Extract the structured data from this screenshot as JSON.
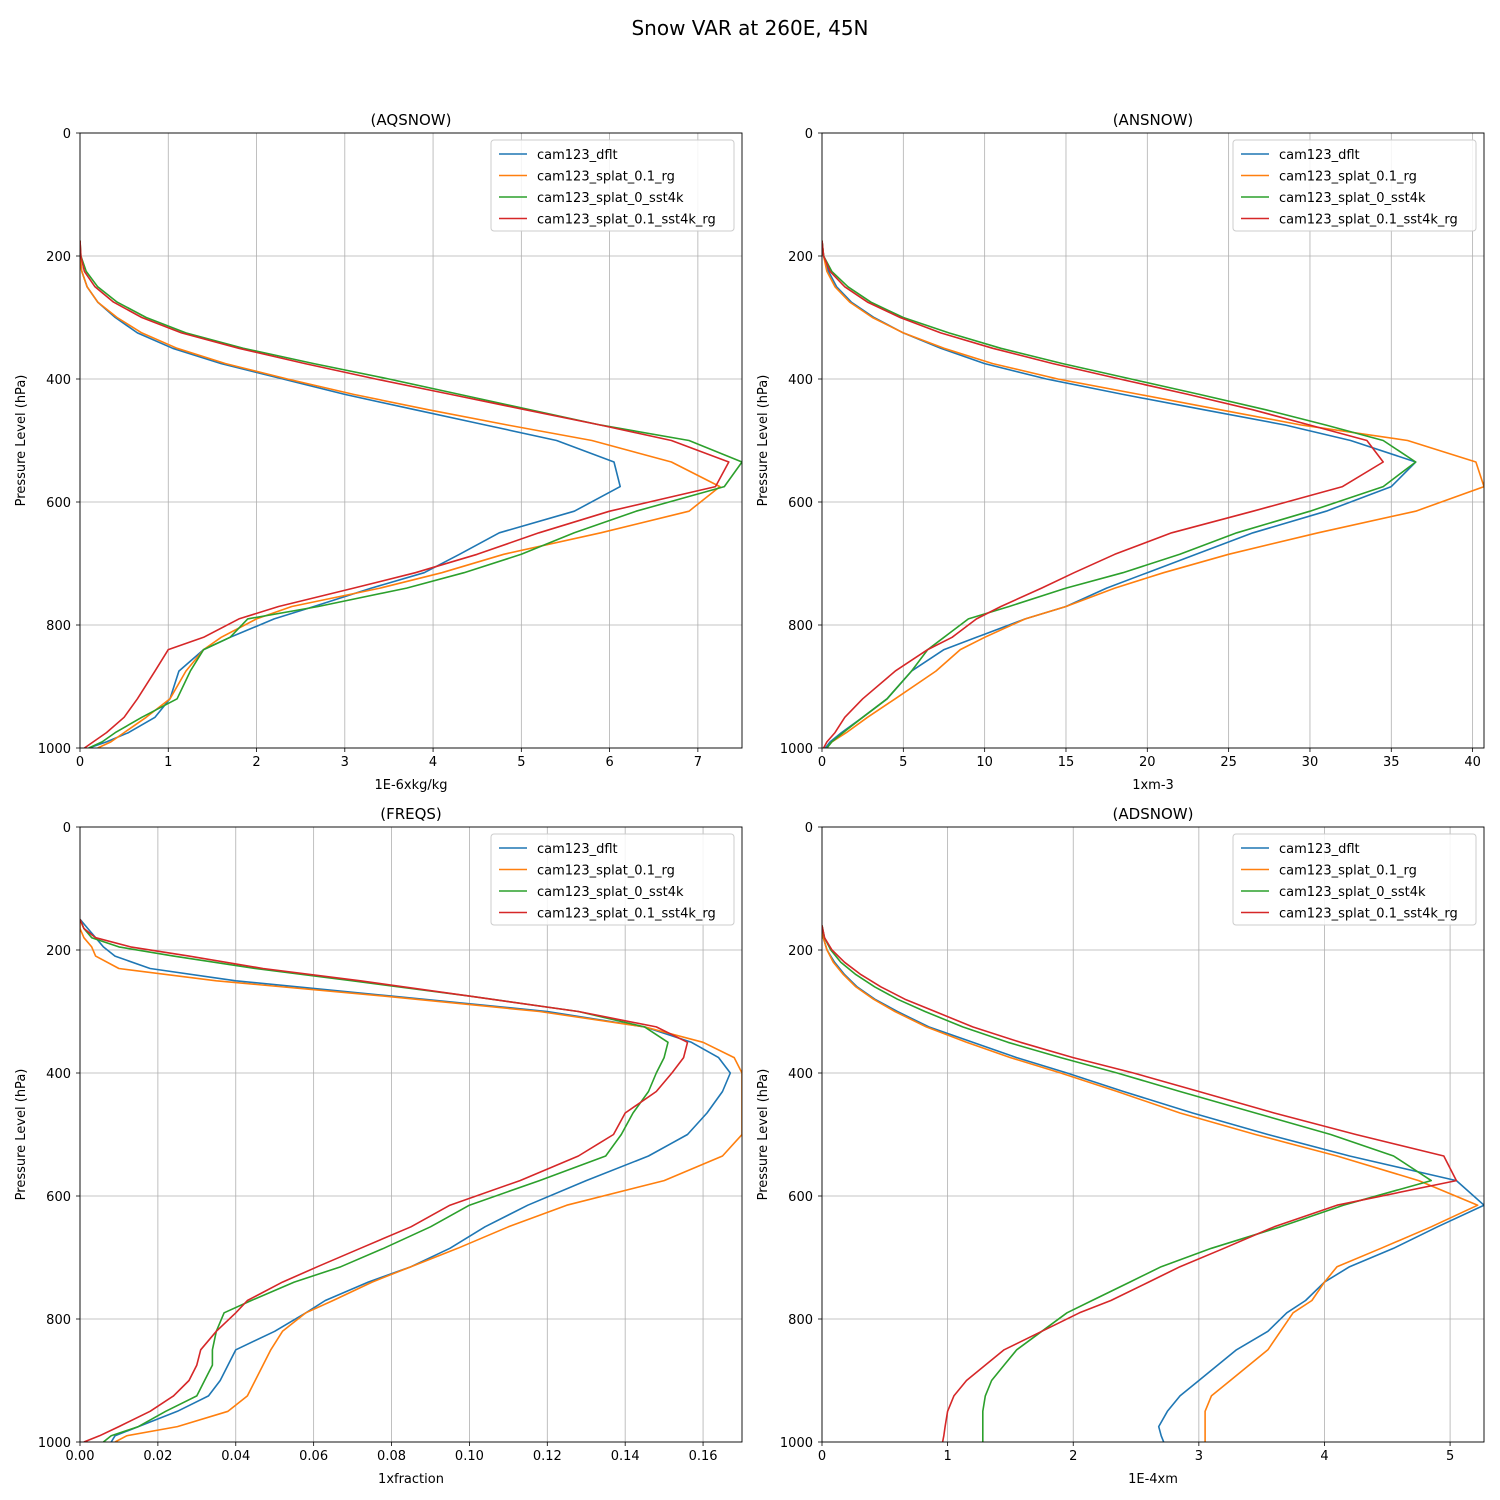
{
  "figure": {
    "title": "Snow VAR at 260E, 45N"
  },
  "colors": {
    "cam123_dflt": "#1f77b4",
    "cam123_splat_0.1_rg": "#ff7f0e",
    "cam123_splat_0_sst4k": "#2ca02c",
    "cam123_splat_0.1_sst4k_rg": "#d62728"
  },
  "chart_data": [
    {
      "type": "line",
      "title": "(AQSNOW)",
      "xlabel": "1E-6xkg/kg",
      "ylabel": "Pressure Level (hPa)",
      "xlim": [
        0,
        7.5
      ],
      "ylim": [
        1000,
        0
      ],
      "xticks": [
        0,
        1,
        2,
        3,
        4,
        5,
        6,
        7
      ],
      "yticks": [
        0,
        200,
        400,
        600,
        800,
        1000
      ],
      "grid": true,
      "legend_loc": "upper right",
      "y": [
        175,
        200,
        225,
        250,
        275,
        300,
        325,
        350,
        375,
        400,
        425,
        450,
        475,
        500,
        535,
        575,
        615,
        650,
        685,
        715,
        740,
        770,
        790,
        820,
        840,
        875,
        920,
        950,
        975,
        990,
        1000
      ],
      "series": [
        {
          "name": "cam123_dflt",
          "values": [
            0,
            0,
            0.02,
            0.08,
            0.2,
            0.4,
            0.65,
            1.05,
            1.6,
            2.3,
            3.0,
            3.8,
            4.6,
            5.4,
            6.05,
            6.12,
            5.6,
            4.75,
            4.3,
            3.9,
            3.3,
            2.65,
            2.2,
            1.7,
            1.4,
            1.12,
            1.02,
            0.85,
            0.55,
            0.3,
            0.1
          ]
        },
        {
          "name": "cam123_splat_0.1_rg",
          "values": [
            0,
            0,
            0.02,
            0.08,
            0.2,
            0.42,
            0.7,
            1.1,
            1.65,
            2.35,
            3.1,
            3.95,
            4.85,
            5.8,
            6.7,
            7.25,
            6.9,
            5.9,
            4.8,
            4.1,
            3.4,
            2.4,
            2.0,
            1.6,
            1.4,
            1.2,
            1.02,
            0.75,
            0.5,
            0.35,
            0.2
          ]
        },
        {
          "name": "cam123_splat_0_sst4k",
          "values": [
            0,
            0.01,
            0.07,
            0.2,
            0.42,
            0.75,
            1.2,
            1.85,
            2.65,
            3.5,
            4.3,
            5.1,
            5.9,
            6.9,
            7.5,
            7.3,
            6.3,
            5.6,
            5.0,
            4.35,
            3.7,
            2.7,
            1.9,
            1.7,
            1.4,
            1.25,
            1.1,
            0.7,
            0.4,
            0.25,
            0.1
          ]
        },
        {
          "name": "cam123_splat_0.1_sst4k_rg",
          "values": [
            0,
            0.01,
            0.05,
            0.17,
            0.38,
            0.7,
            1.15,
            1.8,
            2.55,
            3.35,
            4.2,
            5.05,
            5.9,
            6.7,
            7.35,
            7.2,
            6.0,
            5.2,
            4.5,
            3.8,
            3.1,
            2.25,
            1.8,
            1.4,
            1.0,
            0.85,
            0.65,
            0.5,
            0.3,
            0.15,
            0.05
          ]
        }
      ]
    },
    {
      "type": "line",
      "title": "(ANSNOW)",
      "xlabel": "1xm-3",
      "ylabel": "Pressure Level (hPa)",
      "xlim": [
        0,
        40.7
      ],
      "ylim": [
        1000,
        0
      ],
      "xticks": [
        0,
        5,
        10,
        15,
        20,
        25,
        30,
        35,
        40
      ],
      "yticks": [
        0,
        200,
        400,
        600,
        800,
        1000
      ],
      "grid": true,
      "legend_loc": "upper right",
      "y": [
        175,
        200,
        225,
        250,
        275,
        300,
        325,
        350,
        375,
        400,
        425,
        450,
        475,
        500,
        535,
        575,
        615,
        650,
        685,
        715,
        740,
        770,
        790,
        820,
        840,
        875,
        920,
        950,
        975,
        990,
        1000
      ],
      "series": [
        {
          "name": "cam123_dflt",
          "values": [
            0,
            0.1,
            0.4,
            0.9,
            1.8,
            3.2,
            5.0,
            7.3,
            10.0,
            13.8,
            18.5,
            23.5,
            28.5,
            32.5,
            36.5,
            35.0,
            31.0,
            26.5,
            23.0,
            20.0,
            17.5,
            15.0,
            12.5,
            9.5,
            7.5,
            5.5,
            4.0,
            2.5,
            1.2,
            0.5,
            0.2
          ]
        },
        {
          "name": "cam123_splat_0.1_rg",
          "values": [
            0,
            0.1,
            0.3,
            0.8,
            1.7,
            3.1,
            5.0,
            7.5,
            10.5,
            14.5,
            19.5,
            24.5,
            29.5,
            36.0,
            40.2,
            40.7,
            36.5,
            30.5,
            25.0,
            21.0,
            18.0,
            15.0,
            12.5,
            10.0,
            8.5,
            7.0,
            4.5,
            2.8,
            1.5,
            0.6,
            0.3
          ]
        },
        {
          "name": "cam123_splat_0_sst4k",
          "values": [
            0,
            0.1,
            0.6,
            1.6,
            3.0,
            5.0,
            7.8,
            11.0,
            14.8,
            19.0,
            23.2,
            27.3,
            31.0,
            34.5,
            36.5,
            34.5,
            30.0,
            25.5,
            22.0,
            18.5,
            15.0,
            11.5,
            9.0,
            7.5,
            6.5,
            5.5,
            4.0,
            2.5,
            1.3,
            0.6,
            0.3
          ]
        },
        {
          "name": "cam123_splat_0.1_sst4k_rg",
          "values": [
            0,
            0.1,
            0.5,
            1.4,
            2.8,
            4.8,
            7.3,
            10.5,
            14.2,
            18.3,
            22.5,
            26.5,
            30.0,
            33.5,
            34.5,
            32.0,
            26.5,
            21.5,
            18.0,
            15.5,
            13.5,
            11.0,
            9.5,
            8.0,
            6.5,
            4.5,
            2.5,
            1.4,
            0.8,
            0.3,
            0.1
          ]
        }
      ]
    },
    {
      "type": "line",
      "title": "(FREQS)",
      "xlabel": "1xfraction",
      "ylabel": "Pressure Level (hPa)",
      "xlim": [
        0,
        0.17
      ],
      "ylim": [
        1000,
        0
      ],
      "xticks": [
        0,
        0.02,
        0.04,
        0.06,
        0.08,
        0.1,
        0.12,
        0.14,
        0.16
      ],
      "xtick_labels": [
        "0.00",
        "0.02",
        "0.04",
        "0.06",
        "0.08",
        "0.10",
        "0.12",
        "0.14",
        "0.16"
      ],
      "yticks": [
        0,
        200,
        400,
        600,
        800,
        1000
      ],
      "grid": true,
      "legend_loc": "upper right",
      "y": [
        150,
        165,
        180,
        195,
        210,
        230,
        250,
        275,
        300,
        325,
        350,
        375,
        400,
        430,
        465,
        500,
        535,
        575,
        615,
        650,
        685,
        715,
        740,
        770,
        790,
        820,
        850,
        875,
        900,
        925,
        950,
        975,
        990,
        1000
      ],
      "series": [
        {
          "name": "cam123_dflt",
          "values": [
            0,
            0.002,
            0.004,
            0.006,
            0.009,
            0.018,
            0.04,
            0.08,
            0.12,
            0.145,
            0.157,
            0.164,
            0.167,
            0.165,
            0.161,
            0.156,
            0.146,
            0.13,
            0.115,
            0.104,
            0.095,
            0.085,
            0.074,
            0.063,
            0.058,
            0.05,
            0.04,
            0.038,
            0.036,
            0.033,
            0.025,
            0.015,
            0.009,
            0.008
          ]
        },
        {
          "name": "cam123_splat_0.1_rg",
          "values": [
            0,
            0,
            0.001,
            0.003,
            0.004,
            0.01,
            0.035,
            0.078,
            0.118,
            0.145,
            0.16,
            0.168,
            0.17,
            0.17,
            0.17,
            0.17,
            0.165,
            0.15,
            0.125,
            0.11,
            0.097,
            0.085,
            0.075,
            0.065,
            0.058,
            0.052,
            0.049,
            0.047,
            0.045,
            0.043,
            0.038,
            0.025,
            0.012,
            0.009
          ]
        },
        {
          "name": "cam123_splat_0_sst4k",
          "values": [
            0,
            0.001,
            0.003,
            0.01,
            0.024,
            0.045,
            0.07,
            0.1,
            0.128,
            0.145,
            0.151,
            0.15,
            0.148,
            0.146,
            0.142,
            0.139,
            0.135,
            0.118,
            0.1,
            0.09,
            0.078,
            0.067,
            0.055,
            0.044,
            0.037,
            0.035,
            0.034,
            0.034,
            0.032,
            0.03,
            0.022,
            0.015,
            0.008,
            0.006
          ]
        },
        {
          "name": "cam123_splat_0.1_sst4k_rg",
          "values": [
            0,
            0.001,
            0.004,
            0.013,
            0.028,
            0.047,
            0.072,
            0.1,
            0.128,
            0.148,
            0.156,
            0.155,
            0.152,
            0.148,
            0.14,
            0.137,
            0.128,
            0.113,
            0.095,
            0.085,
            0.072,
            0.061,
            0.052,
            0.043,
            0.04,
            0.035,
            0.031,
            0.03,
            0.028,
            0.024,
            0.018,
            0.01,
            0.005,
            0.001
          ]
        }
      ]
    },
    {
      "type": "line",
      "title": "(ADSNOW)",
      "xlabel": "1E-4xm",
      "ylabel": "Pressure Level (hPa)",
      "xlim": [
        0,
        5.27
      ],
      "ylim": [
        1000,
        0
      ],
      "xticks": [
        0,
        1,
        2,
        3,
        4,
        5
      ],
      "yticks": [
        0,
        200,
        400,
        600,
        800,
        1000
      ],
      "grid": true,
      "legend_loc": "upper right",
      "y": [
        160,
        180,
        200,
        220,
        240,
        260,
        280,
        300,
        325,
        350,
        375,
        400,
        430,
        465,
        500,
        535,
        575,
        615,
        650,
        685,
        715,
        740,
        770,
        790,
        820,
        850,
        875,
        900,
        925,
        950,
        975,
        990,
        1000
      ],
      "series": [
        {
          "name": "cam123_dflt",
          "values": [
            0,
            0.01,
            0.04,
            0.1,
            0.18,
            0.28,
            0.42,
            0.6,
            0.85,
            1.2,
            1.55,
            1.95,
            2.4,
            2.95,
            3.55,
            4.2,
            5.05,
            5.27,
            4.9,
            4.55,
            4.2,
            4.0,
            3.85,
            3.7,
            3.55,
            3.3,
            3.15,
            3.0,
            2.85,
            2.75,
            2.68,
            2.7,
            2.72
          ]
        },
        {
          "name": "cam123_splat_0.1_rg",
          "values": [
            0,
            0.01,
            0.04,
            0.09,
            0.17,
            0.27,
            0.41,
            0.58,
            0.83,
            1.15,
            1.5,
            1.9,
            2.35,
            2.85,
            3.45,
            4.1,
            4.75,
            5.22,
            4.85,
            4.45,
            4.1,
            4.0,
            3.9,
            3.75,
            3.65,
            3.55,
            3.4,
            3.25,
            3.1,
            3.05,
            3.05,
            3.05,
            3.05
          ]
        },
        {
          "name": "cam123_splat_0_sst4k",
          "values": [
            0,
            0.02,
            0.07,
            0.15,
            0.27,
            0.42,
            0.6,
            0.82,
            1.12,
            1.48,
            1.9,
            2.35,
            2.85,
            3.45,
            4.05,
            4.55,
            4.85,
            4.15,
            3.65,
            3.1,
            2.7,
            2.45,
            2.15,
            1.95,
            1.75,
            1.55,
            1.45,
            1.35,
            1.3,
            1.28,
            1.28,
            1.28,
            1.28
          ]
        },
        {
          "name": "cam123_splat_0.1_sst4k_rg",
          "values": [
            0,
            0.02,
            0.08,
            0.18,
            0.31,
            0.47,
            0.66,
            0.9,
            1.2,
            1.58,
            2.0,
            2.48,
            3.0,
            3.6,
            4.25,
            4.95,
            5.05,
            4.1,
            3.6,
            3.2,
            2.85,
            2.6,
            2.3,
            2.05,
            1.75,
            1.45,
            1.3,
            1.15,
            1.05,
            1.0,
            0.98,
            0.97,
            0.96
          ]
        }
      ]
    }
  ]
}
